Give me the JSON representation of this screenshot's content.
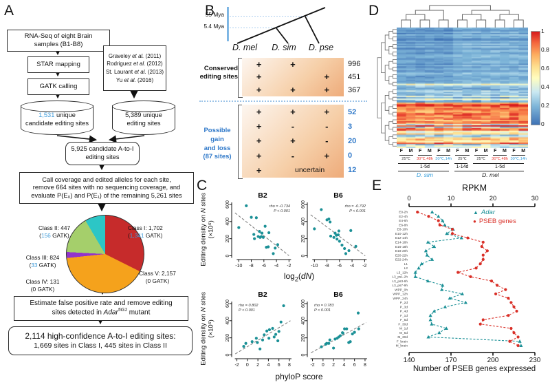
{
  "panelA": {
    "label": "A",
    "flow": {
      "box_rnaseq": "RNA-Seq of eight Brain\nsamples (B1-B8)",
      "box_star": "STAR mapping",
      "box_gatk": "GATK calling",
      "refs": [
        {
          "pre": "Graveley ",
          "post": " (2011)"
        },
        {
          "pre": "Rodriguez ",
          "post": " (2012)"
        },
        {
          "pre": "St. Laurant ",
          "post": " (2013)"
        },
        {
          "pre": "Yu ",
          "post": " (2016)"
        }
      ],
      "etal": "et al.",
      "cyl_left": {
        "num": "1,531",
        "rest": " unique\ncandidate editing sites"
      },
      "cyl_right": {
        "num": "5,389",
        "rest": " unique\nediting sites"
      },
      "box_candidate": "5,925 candidate A-to-I\nediting sites",
      "box_call": "Call coverage and edited alleles for each site,\nremove 664 sites with no sequencing coverage, and\nevaluate P(E₀) and P(E₁) of the remaining 5,261 sites",
      "box_fpr": {
        "pre": "Estimate false positive rate and remove editing\nsites detected in ",
        "gene": "Adar",
        "allele": "5G1",
        "post": " mutant"
      },
      "box_final_line1": "2,114 high-confidence A-to-I editing sites:",
      "box_final_line2": "1,669 sites in Class I, 445 sites in Class II"
    },
    "pie_labels": [
      {
        "line1": "Class I: 1,702",
        "pre": "(",
        "num": "1,341",
        "post": " GATK)",
        "blue": true
      },
      {
        "line1": "Class II: 447",
        "pre": "(",
        "num": "156",
        "post": " GATK)",
        "blue": true
      },
      {
        "line1": "Class III: 824",
        "pre": "(",
        "num": "33",
        "post": " GATK)",
        "blue": true
      },
      {
        "line1": "Class IV: 131",
        "pre": "(",
        "num": "0",
        "post": " GATK)",
        "blue": false
      },
      {
        "line1": "Class V: 2,157",
        "pre": "(",
        "num": "0",
        "post": " GATK)",
        "blue": false
      }
    ]
  },
  "panelB": {
    "label": "B",
    "time_labels": [
      "55 Mya",
      "5.4 Mya"
    ],
    "species": [
      "D. mel",
      "D. sim",
      "D. pse"
    ],
    "conserved": {
      "title": "Conserved\nediting sites",
      "rows": [
        {
          "cells": [
            "+",
            "+",
            ""
          ],
          "n": "996"
        },
        {
          "cells": [
            "+",
            "",
            "+"
          ],
          "n": "451"
        },
        {
          "cells": [
            "+",
            "+",
            "+"
          ],
          "n": "367"
        }
      ]
    },
    "gainloss": {
      "title": "Possible gain\nand loss\n(87 sites)",
      "rows": [
        {
          "cells": [
            "+",
            "+",
            "+"
          ],
          "n": "52"
        },
        {
          "cells": [
            "+",
            "-",
            "-"
          ],
          "n": "3"
        },
        {
          "cells": [
            "+",
            "+",
            "-"
          ],
          "n": "20"
        },
        {
          "cells": [
            "+",
            "-",
            "+"
          ],
          "n": "0"
        },
        {
          "cells": [
            "+",
            "uncertain",
            ""
          ],
          "n": "12"
        }
      ]
    }
  },
  "panelC": {
    "label": "C",
    "ylabel_pre": "Editing density on ",
    "ylabel_it": "N",
    "ylabel_post": " sites",
    "ylabel_scale": "(×10⁶)",
    "xl_pre": "log",
    "xl_sub": "2",
    "xl_mid": "(",
    "xl_it": "dN",
    "xl_post": ")",
    "xlabel_bottom": "phyloP score"
  },
  "panelD": {
    "label": "D",
    "colorbar_ticks": [
      "1",
      "0.8",
      "0.6",
      "0.4",
      "0.2",
      "0"
    ],
    "pairs": [
      {
        "sex": [
          "F",
          "M"
        ],
        "temp": "25℃",
        "temp_color": "#333333"
      },
      {
        "sex": [
          "F",
          "M"
        ],
        "temp": "30℃,48h",
        "temp_color": "#e8342c"
      },
      {
        "sex": [
          "F",
          "M"
        ],
        "temp": "30℃,14h",
        "temp_color": "#2f9ad9"
      },
      {
        "sex": [
          "F",
          "M"
        ],
        "temp": "25℃",
        "temp_color": "#333333"
      },
      {
        "sex": [
          "F",
          "M"
        ],
        "temp": "25℃",
        "temp_color": "#333333"
      },
      {
        "sex": [
          "F",
          "M"
        ],
        "temp": "30℃,48h",
        "temp_color": "#e8342c"
      },
      {
        "sex": [
          "F",
          "M"
        ],
        "temp": "30℃,14h",
        "temp_color": "#2f9ad9"
      }
    ],
    "durations": [
      {
        "label": "1-5d",
        "from": 0,
        "to": 3
      },
      {
        "label": "1-14d",
        "from": 3,
        "to": 4
      },
      {
        "label": "1-5d",
        "from": 4,
        "to": 7
      }
    ],
    "species": [
      {
        "label": "D. sim",
        "color": "#2f9ad9",
        "from": 0,
        "to": 3
      },
      {
        "label": "D. mel",
        "color": "#222222",
        "from": 3,
        "to": 7
      }
    ]
  },
  "panelE": {
    "label": "E",
    "top_axis_label": "RPKM",
    "bottom_axis_label": "Number of PSEB genes expressed",
    "legend": [
      {
        "label": "Adar",
        "color": "#1b9096",
        "marker": "triangle",
        "italic": true
      },
      {
        "label": "PSEB genes",
        "color": "#d92f27",
        "marker": "circle",
        "italic": false
      }
    ]
  },
  "chart_data": [
    {
      "id": "pie-classes",
      "type": "pie",
      "labels": [
        "Class I",
        "Class II",
        "Class III",
        "Class IV",
        "Class V"
      ],
      "values": [
        1702,
        447,
        824,
        131,
        2157
      ],
      "gatk_supported": [
        1341,
        156,
        33,
        0,
        0
      ],
      "colors": [
        "#c62b2b",
        "#2cc6c6",
        "#a5cf6b",
        "#9133cc",
        "#f5a21c"
      ],
      "draw_order": [
        0,
        4,
        3,
        2,
        1
      ],
      "total": 5261
    },
    {
      "id": "scatter-dn-b2",
      "type": "scatter",
      "title": "B2",
      "annotation": [
        "rho = -0.734",
        "P < 0.001"
      ],
      "annot_pos": "tr",
      "xlabel": "log2(dN)",
      "ylabel": "Editing density on N sites (×10^6)",
      "xlim": [
        -10.8,
        -1.6
      ],
      "ylim": [
        -20,
        640
      ],
      "xticks": [
        -10,
        -8,
        -6,
        -4,
        -2
      ],
      "yticks": [
        0,
        200,
        400,
        600
      ],
      "trend": [
        [
          -10.6,
          502
        ],
        [
          -2.0,
          2
        ]
      ],
      "points": [
        [
          -10,
          330
        ],
        [
          -8.8,
          585
        ],
        [
          -8,
          450
        ],
        [
          -7.2,
          445
        ],
        [
          -7.6,
          250
        ],
        [
          -7.5,
          200
        ],
        [
          -6.9,
          225
        ],
        [
          -6.7,
          285
        ],
        [
          -6.6,
          215
        ],
        [
          -6.4,
          225
        ],
        [
          -6.3,
          265
        ],
        [
          -6.1,
          215
        ],
        [
          -5.8,
          345
        ],
        [
          -5.6,
          100
        ],
        [
          -5.3,
          105
        ],
        [
          -5.2,
          270
        ],
        [
          -4.5,
          25
        ],
        [
          -4.2,
          90
        ],
        [
          -3.8,
          130
        ]
      ]
    },
    {
      "id": "scatter-dn-b6",
      "type": "scatter",
      "title": "B6",
      "annotation": [
        "rho = -0.792",
        "P < 0.001"
      ],
      "annot_pos": "tr",
      "xlabel": "log2(dN)",
      "xlim": [
        -10.8,
        -1.6
      ],
      "ylim": [
        -20,
        640
      ],
      "xticks": [
        -10,
        -8,
        -6,
        -4,
        -2
      ],
      "yticks": [
        0,
        200,
        400,
        600
      ],
      "trend": [
        [
          -10.6,
          480
        ],
        [
          -1.9,
          0
        ]
      ],
      "points": [
        [
          -10,
          315
        ],
        [
          -8.9,
          540
        ],
        [
          -8,
          420
        ],
        [
          -7.7,
          430
        ],
        [
          -7.5,
          395
        ],
        [
          -7.4,
          230
        ],
        [
          -6.9,
          215
        ],
        [
          -6.7,
          265
        ],
        [
          -6.5,
          240
        ],
        [
          -6.4,
          195
        ],
        [
          -6.2,
          245
        ],
        [
          -6.1,
          290
        ],
        [
          -6.0,
          170
        ],
        [
          -5.6,
          125
        ],
        [
          -5.2,
          85
        ],
        [
          -5.0,
          25
        ],
        [
          -4.5,
          60
        ],
        [
          -4.2,
          295
        ],
        [
          -3.4,
          110
        ]
      ]
    },
    {
      "id": "scatter-phylop-b2",
      "type": "scatter",
      "title": "B2",
      "annotation": [
        "rho = 0.802",
        "P < 0.001"
      ],
      "annot_pos": "tl",
      "xlabel": "phyloP score",
      "xlim": [
        -2.6,
        8.4
      ],
      "ylim": [
        -20,
        640
      ],
      "xticks": [
        -2,
        0,
        2,
        4,
        6,
        8
      ],
      "yticks": [
        0,
        200,
        400,
        600
      ],
      "trend": [
        [
          -2.3,
          12
        ],
        [
          8.2,
          400
        ]
      ],
      "points": [
        [
          -0.7,
          100
        ],
        [
          -0.3,
          135
        ],
        [
          0.9,
          155
        ],
        [
          1.7,
          195
        ],
        [
          1.9,
          145
        ],
        [
          2.4,
          70
        ],
        [
          2.9,
          175
        ],
        [
          3.2,
          235
        ],
        [
          3.7,
          280
        ],
        [
          4.1,
          195
        ],
        [
          4.2,
          295
        ],
        [
          4.8,
          310
        ],
        [
          5.1,
          210
        ],
        [
          5.4,
          240
        ],
        [
          5.8,
          165
        ],
        [
          6.0,
          275
        ],
        [
          6.4,
          385
        ],
        [
          6.9,
          575
        ]
      ]
    },
    {
      "id": "scatter-phylop-b6",
      "type": "scatter",
      "title": "B6",
      "annotation": [
        "rho = 0.783",
        "P < 0.001"
      ],
      "annot_pos": "tl",
      "xlabel": "phyloP score",
      "xlim": [
        -2.6,
        8.4
      ],
      "ylim": [
        -20,
        640
      ],
      "xticks": [
        -2,
        0,
        2,
        4,
        6,
        8
      ],
      "yticks": [
        0,
        200,
        400,
        600
      ],
      "trend": [
        [
          -2.3,
          25
        ],
        [
          8.2,
          378
        ]
      ],
      "points": [
        [
          -0.3,
          95
        ],
        [
          0.5,
          125
        ],
        [
          0.7,
          135
        ],
        [
          1.1,
          135
        ],
        [
          1.3,
          175
        ],
        [
          2.0,
          80
        ],
        [
          2.3,
          185
        ],
        [
          2.7,
          195
        ],
        [
          3.0,
          210
        ],
        [
          3.3,
          225
        ],
        [
          3.7,
          260
        ],
        [
          3.8,
          255
        ],
        [
          4.1,
          305
        ],
        [
          4.5,
          305
        ],
        [
          4.9,
          145
        ],
        [
          5.2,
          155
        ],
        [
          5.6,
          245
        ],
        [
          6.0,
          265
        ],
        [
          6.7,
          490
        ],
        [
          6.8,
          305
        ]
      ]
    },
    {
      "id": "heatmap-editing",
      "type": "heatmap",
      "ncols": 14,
      "colorbar_range": [
        0,
        1
      ],
      "colorbar_ticks": [
        1,
        0.8,
        0.6,
        0.4,
        0.2,
        0
      ],
      "colormap_stops": [
        [
          0,
          "#3f72b5"
        ],
        [
          0.2,
          "#7fb6d9"
        ],
        [
          0.35,
          "#c9e8f2"
        ],
        [
          0.5,
          "#fffdc0"
        ],
        [
          0.62,
          "#fee090"
        ],
        [
          0.75,
          "#fdae61"
        ],
        [
          0.88,
          "#f4673e"
        ],
        [
          1,
          "#d7191c"
        ]
      ],
      "row_bands": [
        {
          "count": 42,
          "lo": 0.04,
          "hi": 0.2,
          "noise": 0.05
        },
        {
          "count": 14,
          "lo": 0.08,
          "hi": 0.5,
          "noise": 0.1
        },
        {
          "count": 16,
          "lo": 0.68,
          "hi": 1.0,
          "noise": 0.12
        },
        {
          "count": 18,
          "lo": 0.05,
          "hi": 0.95,
          "noise": 0.15
        }
      ]
    },
    {
      "id": "adar-pseb-expression",
      "type": "line",
      "stages": [
        "E0-2h",
        "E2-4h",
        "E4-6h",
        "E6-8h",
        "E8-10h",
        "E10-12h",
        "E12-14h",
        "E14-16h",
        "E16-18h",
        "E18-20h",
        "E20-22h",
        "E22-24h",
        "L1",
        "L2",
        "L3_12h",
        "L3_ps1-2h",
        "L3_ps3-6h",
        "L3_ps7-9h",
        "WPP_0h",
        "WPP_12h",
        "WPP_24h",
        "P_2d",
        "P_3d",
        "P_4d",
        "F_1d",
        "F_5d",
        "F_30d",
        "M_1d",
        "M_5d",
        "M_30d",
        "F_brain",
        "M_brain"
      ],
      "series": [
        {
          "name": "Adar",
          "axis": "top",
          "color": "#1b9096",
          "marker": "triangle",
          "values": [
            5.5,
            7,
            8,
            8.5,
            10.5,
            9,
            12.5,
            4.5,
            6,
            4,
            4.3,
            5.5,
            3,
            2.3,
            1.5,
            1.5,
            4.5,
            8,
            7.8,
            12.7,
            9.7,
            13.5,
            8.6,
            6,
            5.1,
            5.1,
            5.4,
            8.9,
            7.2,
            4.6,
            26.4,
            26.7
          ]
        },
        {
          "name": "PSEB genes",
          "axis": "bottom",
          "color": "#d92f27",
          "marker": "circle",
          "values": [
            146,
            154,
            161,
            162,
            171,
            171,
            182,
            193,
            192,
            196,
            193,
            193,
            191,
            188,
            175,
            184,
            199,
            203,
            209,
            202,
            211,
            213,
            215,
            217,
            211,
            193,
            191,
            213,
            215,
            218,
            212,
            218
          ]
        }
      ],
      "top_axis": {
        "label": "RPKM",
        "range": [
          0,
          30
        ],
        "ticks": [
          0,
          10,
          20,
          30
        ]
      },
      "bottom_axis": {
        "label": "Number of PSEB genes expressed",
        "range": [
          140,
          230
        ],
        "ticks": [
          140,
          170,
          200,
          230
        ]
      }
    }
  ]
}
